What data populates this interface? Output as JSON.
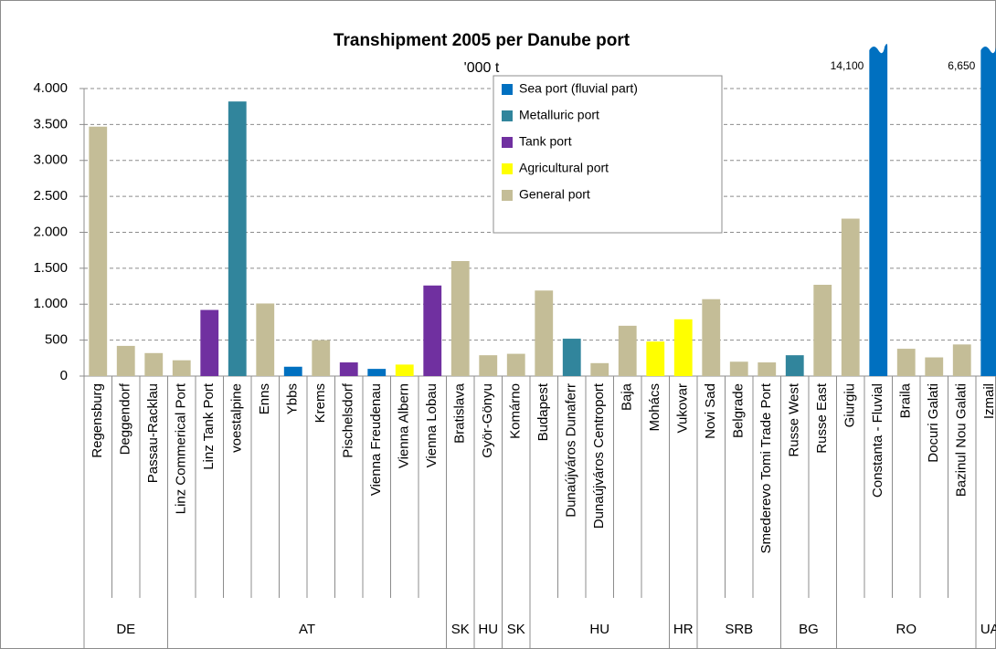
{
  "chart_data": {
    "type": "bar",
    "title": "Transhipment 2005 per Danube port",
    "subtitle": "'000 t",
    "categories": [
      "Regensburg",
      "Deggendorf",
      "Passau-Racklau",
      "Linz Commerical Port",
      "Linz Tank Port",
      "voestalpine",
      "Enns",
      "Ybbs",
      "Krems",
      "Pischelsdorf",
      "Vienna Freudenau",
      "Vienna Albern",
      "Vienna Lobau",
      "Bratislava",
      "Györ-Gönyu",
      "Komárno",
      "Budapest",
      "Dunaújváros Dunaferr",
      "Dunaújváros Centroport",
      "Baja",
      "Mohács",
      "Vukovar",
      "Novi Sad",
      "Belgrade",
      "Smederevo Tomi Trade Port",
      "Russe West",
      "Russe East",
      "Giurgiu",
      "Constanta - Fluvial",
      "Braila",
      "Docuri Galati",
      "Bazinul Nou Galati",
      "Izmail"
    ],
    "groups": [
      {
        "label": "DE",
        "span": 3
      },
      {
        "label": "AT",
        "span": 10
      },
      {
        "label": "SK",
        "span": 1
      },
      {
        "label": "HU",
        "span": 1
      },
      {
        "label": "SK",
        "span": 1
      },
      {
        "label": "HU",
        "span": 5
      },
      {
        "label": "HR",
        "span": 1
      },
      {
        "label": "SRB",
        "span": 3
      },
      {
        "label": "BG",
        "span": 2
      },
      {
        "label": "RO",
        "span": 5
      },
      {
        "label": "UA",
        "span": 1
      }
    ],
    "series": [
      {
        "name": "Sea port (fluvial part)",
        "color": "#0070c0",
        "values": [
          null,
          null,
          null,
          null,
          null,
          null,
          null,
          130,
          null,
          null,
          100,
          null,
          null,
          null,
          null,
          null,
          null,
          null,
          null,
          null,
          null,
          null,
          null,
          null,
          null,
          null,
          null,
          null,
          14100,
          null,
          null,
          null,
          6650
        ],
        "value_labels": [
          null,
          null,
          null,
          null,
          null,
          null,
          null,
          null,
          null,
          null,
          null,
          null,
          null,
          null,
          null,
          null,
          null,
          null,
          null,
          null,
          null,
          null,
          null,
          null,
          null,
          null,
          null,
          null,
          "14,100",
          null,
          null,
          null,
          "6,650"
        ]
      },
      {
        "name": "Metalluric port",
        "color": "#31859c",
        "values": [
          null,
          null,
          null,
          null,
          null,
          3820,
          null,
          null,
          null,
          null,
          null,
          null,
          null,
          null,
          null,
          null,
          null,
          520,
          null,
          null,
          null,
          null,
          null,
          null,
          null,
          290,
          null,
          null,
          null,
          null,
          null,
          null,
          null
        ]
      },
      {
        "name": "Tank port",
        "color": "#7030a0",
        "values": [
          null,
          null,
          null,
          null,
          920,
          null,
          null,
          null,
          null,
          190,
          null,
          null,
          1260,
          null,
          null,
          null,
          null,
          null,
          null,
          null,
          null,
          null,
          null,
          null,
          null,
          null,
          null,
          null,
          null,
          null,
          null,
          null,
          null
        ]
      },
      {
        "name": "Agricultural port",
        "color": "#ffff00",
        "values": [
          null,
          null,
          null,
          null,
          null,
          null,
          null,
          null,
          null,
          null,
          null,
          160,
          null,
          null,
          null,
          null,
          null,
          null,
          null,
          null,
          480,
          790,
          null,
          null,
          null,
          null,
          null,
          null,
          null,
          null,
          null,
          null,
          null
        ]
      },
      {
        "name": "General port",
        "color": "#c4bd97",
        "values": [
          3470,
          420,
          320,
          220,
          null,
          null,
          1010,
          null,
          500,
          null,
          null,
          null,
          null,
          1600,
          290,
          310,
          1190,
          null,
          180,
          700,
          null,
          null,
          1070,
          200,
          190,
          null,
          1270,
          2190,
          null,
          380,
          260,
          440,
          null
        ]
      }
    ],
    "ylim": [
      0,
      4000
    ],
    "yticks": [
      0,
      500,
      {
        "value": 1000,
        "label": "1.000"
      },
      {
        "value": 1500,
        "label": "1.500"
      },
      {
        "value": 2000,
        "label": "2.000"
      },
      {
        "value": 2500,
        "label": "2.500"
      },
      {
        "value": 3000,
        "label": "3.000"
      },
      {
        "value": 3500,
        "label": "3.500"
      },
      {
        "value": 4000,
        "label": "4.000"
      }
    ],
    "grid": true
  }
}
